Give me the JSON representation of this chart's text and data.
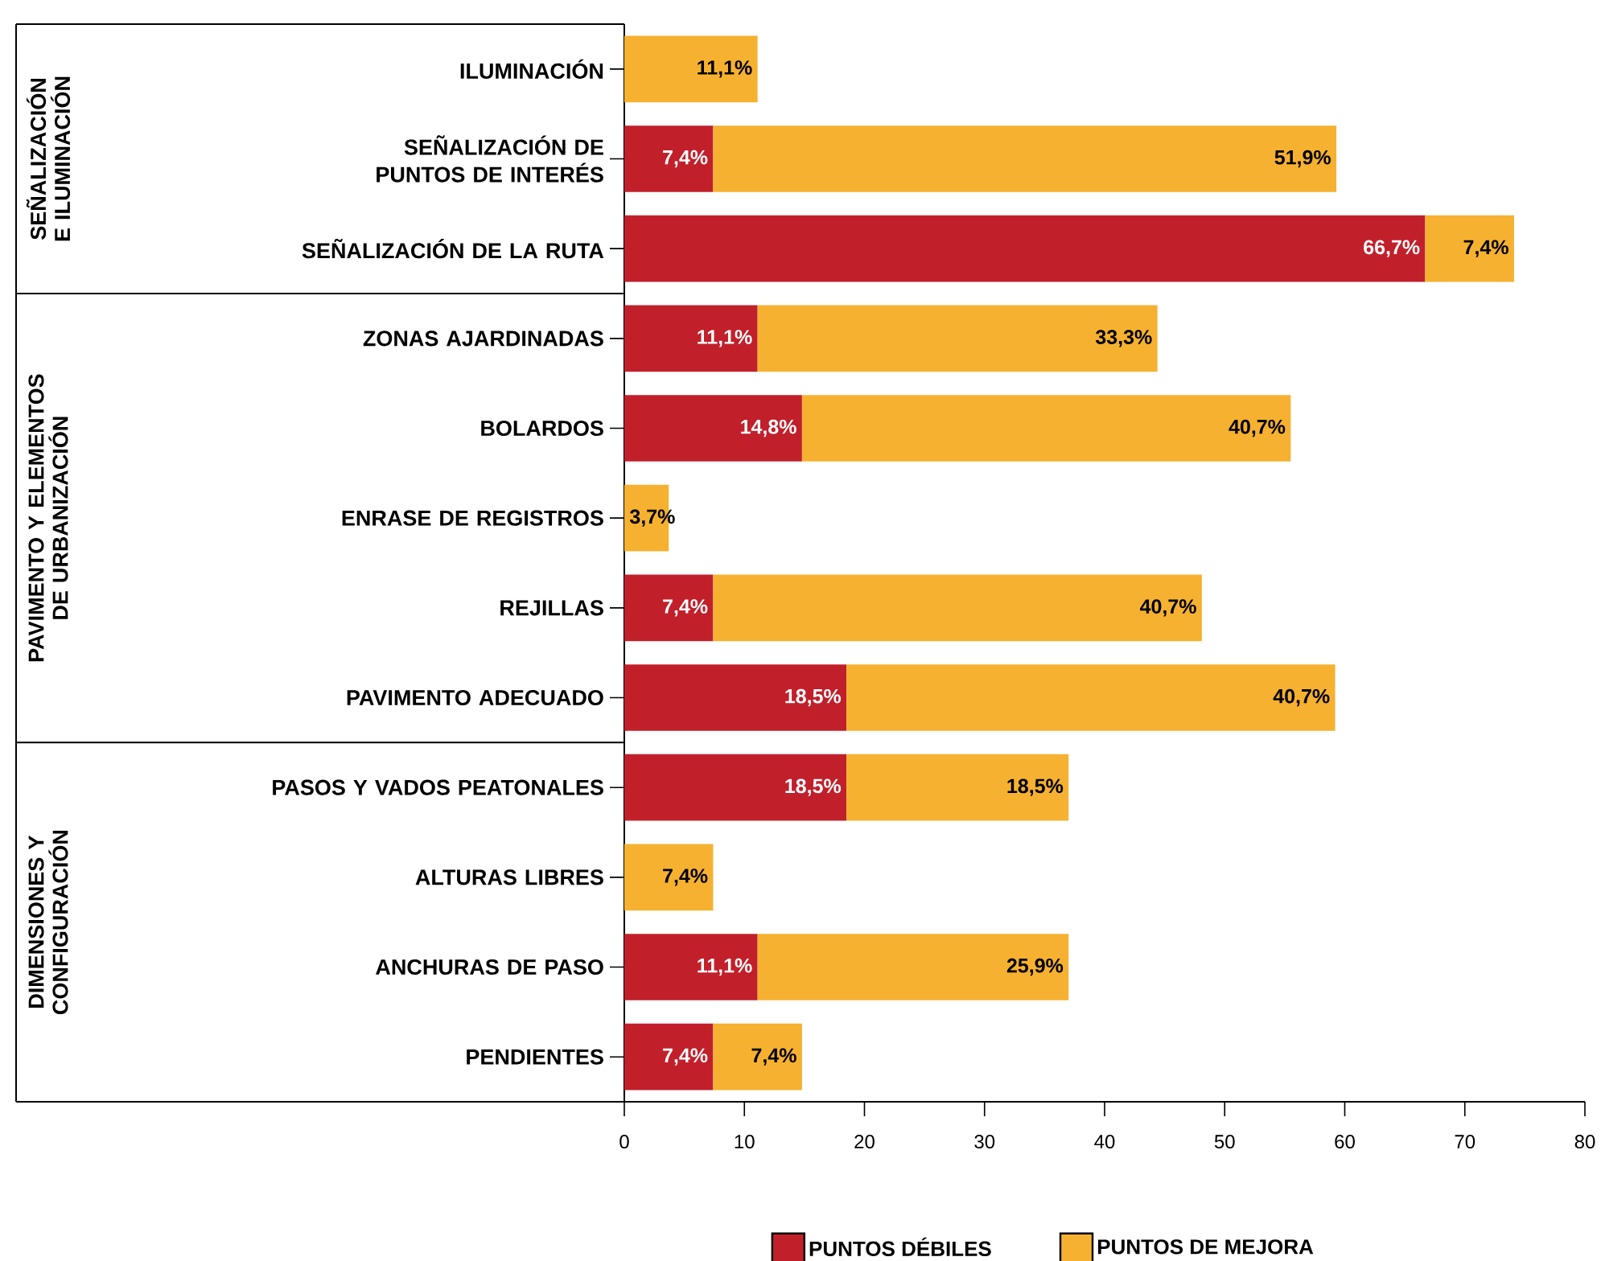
{
  "chart_data": {
    "type": "bar",
    "orientation": "horizontal",
    "stacked": true,
    "categories": [
      "ILUMINACIÓN",
      "SEÑALIZACIÓN DE PUNTOS DE INTERÉS",
      "SEÑALIZACIÓN DE LA RUTA",
      "ZONAS AJARDINADAS",
      "BOLARDOS",
      "ENRASE DE REGISTROS",
      "REJILLAS",
      "PAVIMENTO ADECUADO",
      "PASOS Y VADOS PEATONALES",
      "ALTURAS LIBRES",
      "ANCHURAS DE PASO",
      "PENDIENTES"
    ],
    "series": [
      {
        "name": "PUNTOS DÉBILES",
        "color": "#c1202b",
        "values": [
          null,
          7.4,
          66.7,
          11.1,
          14.8,
          null,
          7.4,
          18.5,
          18.5,
          null,
          11.1,
          7.4
        ],
        "value_labels": [
          null,
          "7,4%",
          "66,7%",
          "11,1%",
          "14,8%",
          null,
          "7,4%",
          "18,5%",
          "18,5%",
          null,
          "11,1%",
          "7,4%"
        ]
      },
      {
        "name": "PUNTOS DE MEJORA",
        "color": "#f6b130",
        "values": [
          11.1,
          51.9,
          7.4,
          33.3,
          40.7,
          3.7,
          40.7,
          40.7,
          18.5,
          7.4,
          25.9,
          7.4
        ],
        "value_labels": [
          "11,1%",
          "51,9%",
          "7,4%",
          "33,3%",
          "40,7%",
          "3,7%",
          "40,7%",
          "40,7%",
          "18,5%",
          "7,4%",
          "25,9%",
          "7,4%"
        ]
      }
    ],
    "xlim": [
      0,
      80
    ],
    "xticks": [
      0,
      10,
      20,
      30,
      40,
      50,
      60,
      70,
      80
    ],
    "annotations": [
      "SEÑALIZACIÓN E ILUMINACIÓN",
      "PAVIMENTO Y ELEMENTOS DE URBANIZACIÓN",
      "DIMENSIONES Y CONFIGURACIÓN"
    ],
    "grid": false,
    "legend": "bottom"
  }
}
